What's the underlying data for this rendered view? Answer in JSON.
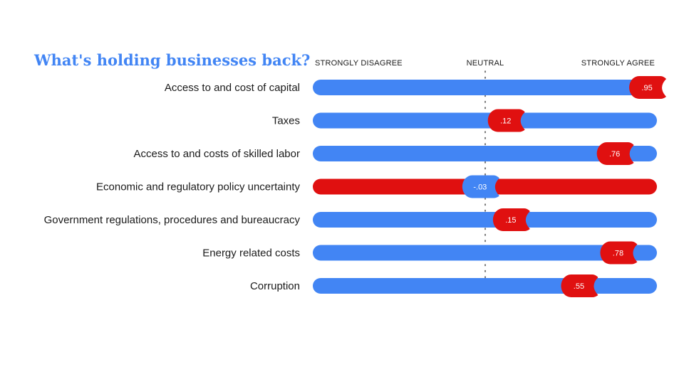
{
  "colors": {
    "accent_blue": "#4285f4",
    "accent_red": "#e01010",
    "title": "#4285f4",
    "text": "#1a1a1a",
    "neutral_line": "#555555"
  },
  "chart_data": {
    "type": "bar",
    "title": "What's holding businesses back?",
    "scale_labels": {
      "left": "STRONGLY DISAGREE",
      "center": "NEUTRAL",
      "right": "STRONGLY AGREE"
    },
    "xlim": [
      -1,
      1
    ],
    "grid": false,
    "categories": [
      "Access to and cost of capital",
      "Taxes",
      "Access to and costs of skilled labor",
      "Economic and regulatory policy uncertainty",
      "Government regulations, procedures and bureaucracy",
      "Energy related costs",
      "Corruption"
    ],
    "values": [
      0.95,
      0.12,
      0.76,
      -0.03,
      0.15,
      0.78,
      0.55
    ],
    "value_labels": [
      ".95",
      ".12",
      ".76",
      "-.03",
      ".15",
      ".78",
      ".55"
    ]
  }
}
